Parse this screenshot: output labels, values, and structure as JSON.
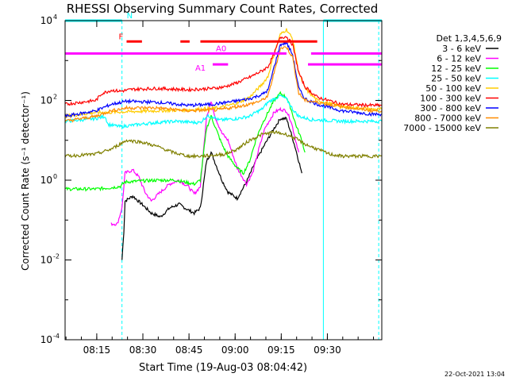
{
  "chart_data": {
    "type": "line",
    "title": "RHESSI Observing Summary Count Rates, Corrected",
    "xlabel": "Start Time (19-Aug-03 08:04:42)",
    "ylabel": "Corrected Count Rate (s⁻¹ detector⁻¹)",
    "footer_date": "22-Oct-2021 13:04",
    "yscale": "log",
    "xlim_minutes": [
      0,
      103
    ],
    "ylim": [
      0.0001,
      10000
    ],
    "x_ticks": [
      {
        "label": "08:15",
        "minute": 10.3
      },
      {
        "label": "08:30",
        "minute": 25.3
      },
      {
        "label": "08:45",
        "minute": 40.3
      },
      {
        "label": "09:00",
        "minute": 55.3
      },
      {
        "label": "09:15",
        "minute": 70.3
      },
      {
        "label": "09:30",
        "minute": 85.3
      }
    ],
    "y_ticks": [
      {
        "label": "10",
        "exp": "-4",
        "value": 0.0001
      },
      {
        "label": "10",
        "exp": "-2",
        "value": 0.01
      },
      {
        "label": "10",
        "exp": "0",
        "value": 1
      },
      {
        "label": "10",
        "exp": "2",
        "value": 100
      },
      {
        "label": "10",
        "exp": "4",
        "value": 10000
      }
    ],
    "legend_title": "Det 1,3,4,5,6,9",
    "series": [
      {
        "name": "3 - 6 keV",
        "color": "#000000",
        "points": [
          [
            18.5,
            0.01
          ],
          [
            19.1,
            0.05
          ],
          [
            19.5,
            0.3
          ],
          [
            22,
            0.4
          ],
          [
            25,
            0.25
          ],
          [
            28,
            0.15
          ],
          [
            31,
            0.12
          ],
          [
            34,
            0.2
          ],
          [
            37,
            0.25
          ],
          [
            40,
            0.18
          ],
          [
            42,
            0.15
          ],
          [
            44,
            0.2
          ],
          [
            46,
            3
          ],
          [
            47.5,
            5
          ],
          [
            49,
            2.5
          ],
          [
            51,
            1
          ],
          [
            53,
            0.5
          ],
          [
            56,
            0.35
          ],
          [
            59,
            0.9
          ],
          [
            62,
            3
          ],
          [
            65,
            8
          ],
          [
            68,
            20
          ],
          [
            70,
            35
          ],
          [
            72,
            35
          ],
          [
            73.5,
            15
          ],
          [
            75,
            6
          ],
          [
            76,
            3
          ],
          [
            77,
            1.5
          ]
        ]
      },
      {
        "name": "6 - 12 keV",
        "color": "#ff00ff",
        "points": [
          [
            15,
            0.08
          ],
          [
            17,
            0.08
          ],
          [
            18.5,
            0.2
          ],
          [
            19.5,
            1.5
          ],
          [
            22,
            1.8
          ],
          [
            24,
            1.2
          ],
          [
            26,
            0.5
          ],
          [
            28,
            0.3
          ],
          [
            31,
            0.5
          ],
          [
            34,
            0.8
          ],
          [
            37,
            1
          ],
          [
            40,
            0.7
          ],
          [
            42,
            0.45
          ],
          [
            44,
            0.7
          ],
          [
            46,
            40
          ],
          [
            47.5,
            90
          ],
          [
            49,
            35
          ],
          [
            51,
            15
          ],
          [
            53,
            10
          ],
          [
            56,
            2
          ],
          [
            59,
            0.8
          ],
          [
            61,
            1.5
          ],
          [
            63,
            6
          ],
          [
            65,
            20
          ],
          [
            68,
            50
          ],
          [
            70,
            60
          ],
          [
            72,
            55
          ],
          [
            73.5,
            30
          ],
          [
            75,
            10
          ],
          [
            76,
            5
          ]
        ]
      },
      {
        "name": "12 - 25 keV",
        "color": "#00ff00",
        "points": [
          [
            0,
            0.6
          ],
          [
            5,
            0.6
          ],
          [
            10,
            0.6
          ],
          [
            15,
            0.65
          ],
          [
            18,
            0.7
          ],
          [
            19.5,
            0.9
          ],
          [
            24,
            0.95
          ],
          [
            30,
            1
          ],
          [
            36,
            1
          ],
          [
            42,
            0.8
          ],
          [
            44,
            1
          ],
          [
            46,
            20
          ],
          [
            47.5,
            40
          ],
          [
            49,
            20
          ],
          [
            51,
            8
          ],
          [
            53,
            4
          ],
          [
            56,
            2
          ],
          [
            58,
            1.5
          ],
          [
            60,
            3
          ],
          [
            62,
            10
          ],
          [
            64,
            25
          ],
          [
            66,
            50
          ],
          [
            68,
            100
          ],
          [
            70,
            150
          ],
          [
            72,
            120
          ],
          [
            73.5,
            60
          ],
          [
            75,
            25
          ],
          [
            77,
            10
          ],
          [
            78,
            5
          ]
        ]
      },
      {
        "name": "25 - 50 keV",
        "color": "#00ffff",
        "points": [
          [
            0,
            30
          ],
          [
            10,
            35
          ],
          [
            13,
            40
          ],
          [
            14,
            25
          ],
          [
            18,
            22
          ],
          [
            24,
            25
          ],
          [
            30,
            28
          ],
          [
            36,
            30
          ],
          [
            42,
            28
          ],
          [
            44,
            28
          ],
          [
            46,
            40
          ],
          [
            48,
            40
          ],
          [
            50,
            32
          ],
          [
            56,
            35
          ],
          [
            60,
            40
          ],
          [
            62,
            50
          ],
          [
            64,
            60
          ],
          [
            66,
            90
          ],
          [
            68,
            110
          ],
          [
            70,
            130
          ],
          [
            72,
            110
          ],
          [
            74,
            60
          ],
          [
            76,
            40
          ],
          [
            80,
            33
          ],
          [
            90,
            30
          ],
          [
            103,
            30
          ]
        ]
      },
      {
        "name": "50 - 100 keV",
        "color": "#ffcc00",
        "points": [
          [
            0,
            40
          ],
          [
            10,
            50
          ],
          [
            14,
            50
          ],
          [
            20,
            52
          ],
          [
            30,
            55
          ],
          [
            40,
            58
          ],
          [
            50,
            65
          ],
          [
            56,
            85
          ],
          [
            60,
            120
          ],
          [
            64,
            250
          ],
          [
            66,
            400
          ],
          [
            68,
            1500
          ],
          [
            70,
            4500
          ],
          [
            72,
            6000
          ],
          [
            74,
            3500
          ],
          [
            76,
            500
          ],
          [
            78,
            200
          ],
          [
            82,
            100
          ],
          [
            90,
            70
          ],
          [
            100,
            60
          ],
          [
            103,
            60
          ]
        ]
      },
      {
        "name": "100 - 300 keV",
        "color": "#ff0000",
        "points": [
          [
            0,
            80
          ],
          [
            10,
            100
          ],
          [
            12,
            150
          ],
          [
            15,
            180
          ],
          [
            18,
            170
          ],
          [
            22,
            190
          ],
          [
            30,
            200
          ],
          [
            40,
            185
          ],
          [
            48,
            200
          ],
          [
            52,
            220
          ],
          [
            56,
            280
          ],
          [
            60,
            380
          ],
          [
            64,
            550
          ],
          [
            66,
            700
          ],
          [
            68,
            1500
          ],
          [
            70,
            3800
          ],
          [
            72,
            4000
          ],
          [
            74,
            2500
          ],
          [
            76,
            500
          ],
          [
            78,
            220
          ],
          [
            82,
            120
          ],
          [
            90,
            80
          ],
          [
            100,
            75
          ],
          [
            103,
            75
          ]
        ]
      },
      {
        "name": "300 - 800 keV",
        "color": "#0000ff",
        "points": [
          [
            0,
            40
          ],
          [
            10,
            55
          ],
          [
            15,
            80
          ],
          [
            20,
            95
          ],
          [
            30,
            90
          ],
          [
            40,
            75
          ],
          [
            48,
            80
          ],
          [
            55,
            95
          ],
          [
            60,
            110
          ],
          [
            64,
            140
          ],
          [
            66,
            180
          ],
          [
            68,
            700
          ],
          [
            70,
            2500
          ],
          [
            72,
            2800
          ],
          [
            74,
            1400
          ],
          [
            76,
            200
          ],
          [
            78,
            110
          ],
          [
            82,
            80
          ],
          [
            90,
            55
          ],
          [
            100,
            45
          ],
          [
            103,
            45
          ]
        ]
      },
      {
        "name": "800 - 7000 keV",
        "color": "#ff8c00",
        "points": [
          [
            0,
            30
          ],
          [
            10,
            40
          ],
          [
            15,
            55
          ],
          [
            20,
            65
          ],
          [
            30,
            65
          ],
          [
            40,
            55
          ],
          [
            50,
            58
          ],
          [
            56,
            70
          ],
          [
            60,
            80
          ],
          [
            64,
            100
          ],
          [
            66,
            130
          ],
          [
            68,
            500
          ],
          [
            70,
            2000
          ],
          [
            72,
            2200
          ],
          [
            74,
            1200
          ],
          [
            76,
            150
          ],
          [
            78,
            100
          ],
          [
            82,
            90
          ],
          [
            90,
            70
          ],
          [
            100,
            55
          ],
          [
            103,
            55
          ]
        ]
      },
      {
        "name": "7000 - 15000 keV",
        "color": "#808000",
        "points": [
          [
            0,
            4
          ],
          [
            10,
            4.5
          ],
          [
            15,
            6
          ],
          [
            20,
            10
          ],
          [
            25,
            9
          ],
          [
            30,
            7
          ],
          [
            35,
            5
          ],
          [
            40,
            4
          ],
          [
            44,
            4
          ],
          [
            48,
            4.2
          ],
          [
            52,
            4.5
          ],
          [
            56,
            6
          ],
          [
            60,
            10
          ],
          [
            64,
            14
          ],
          [
            68,
            16
          ],
          [
            70,
            15
          ],
          [
            72,
            14
          ],
          [
            74,
            12
          ],
          [
            76,
            10
          ],
          [
            78,
            8
          ],
          [
            82,
            6
          ],
          [
            86,
            4.5
          ],
          [
            90,
            4
          ],
          [
            95,
            4
          ],
          [
            100,
            4
          ],
          [
            103,
            4
          ]
        ]
      }
    ],
    "flag_bars": [
      {
        "label": "N",
        "color": "#00ffff",
        "row": 10000,
        "segments": [
          [
            0,
            18.5
          ],
          [
            84,
            103
          ]
        ]
      },
      {
        "label": "F",
        "color": "#ff0000",
        "row": 3000,
        "segments": [
          [
            20,
            25
          ],
          [
            37.5,
            40.5
          ],
          [
            44,
            82
          ]
        ]
      },
      {
        "label": "A0",
        "color": "#ff00ff",
        "row": 1500,
        "segments": [
          [
            0,
            72
          ],
          [
            80,
            103
          ]
        ]
      },
      {
        "label": "A1",
        "color": "#ff00ff",
        "row": 800,
        "segments": [
          [
            48,
            53
          ],
          [
            79,
            103
          ]
        ]
      }
    ],
    "vertical_markers": [
      {
        "minute": 18.5,
        "style": "dashed",
        "color": "#00ffff"
      },
      {
        "minute": 84,
        "style": "solid",
        "color": "#00ffff"
      },
      {
        "minute": 102,
        "style": "dashed",
        "color": "#00ffff"
      }
    ]
  }
}
